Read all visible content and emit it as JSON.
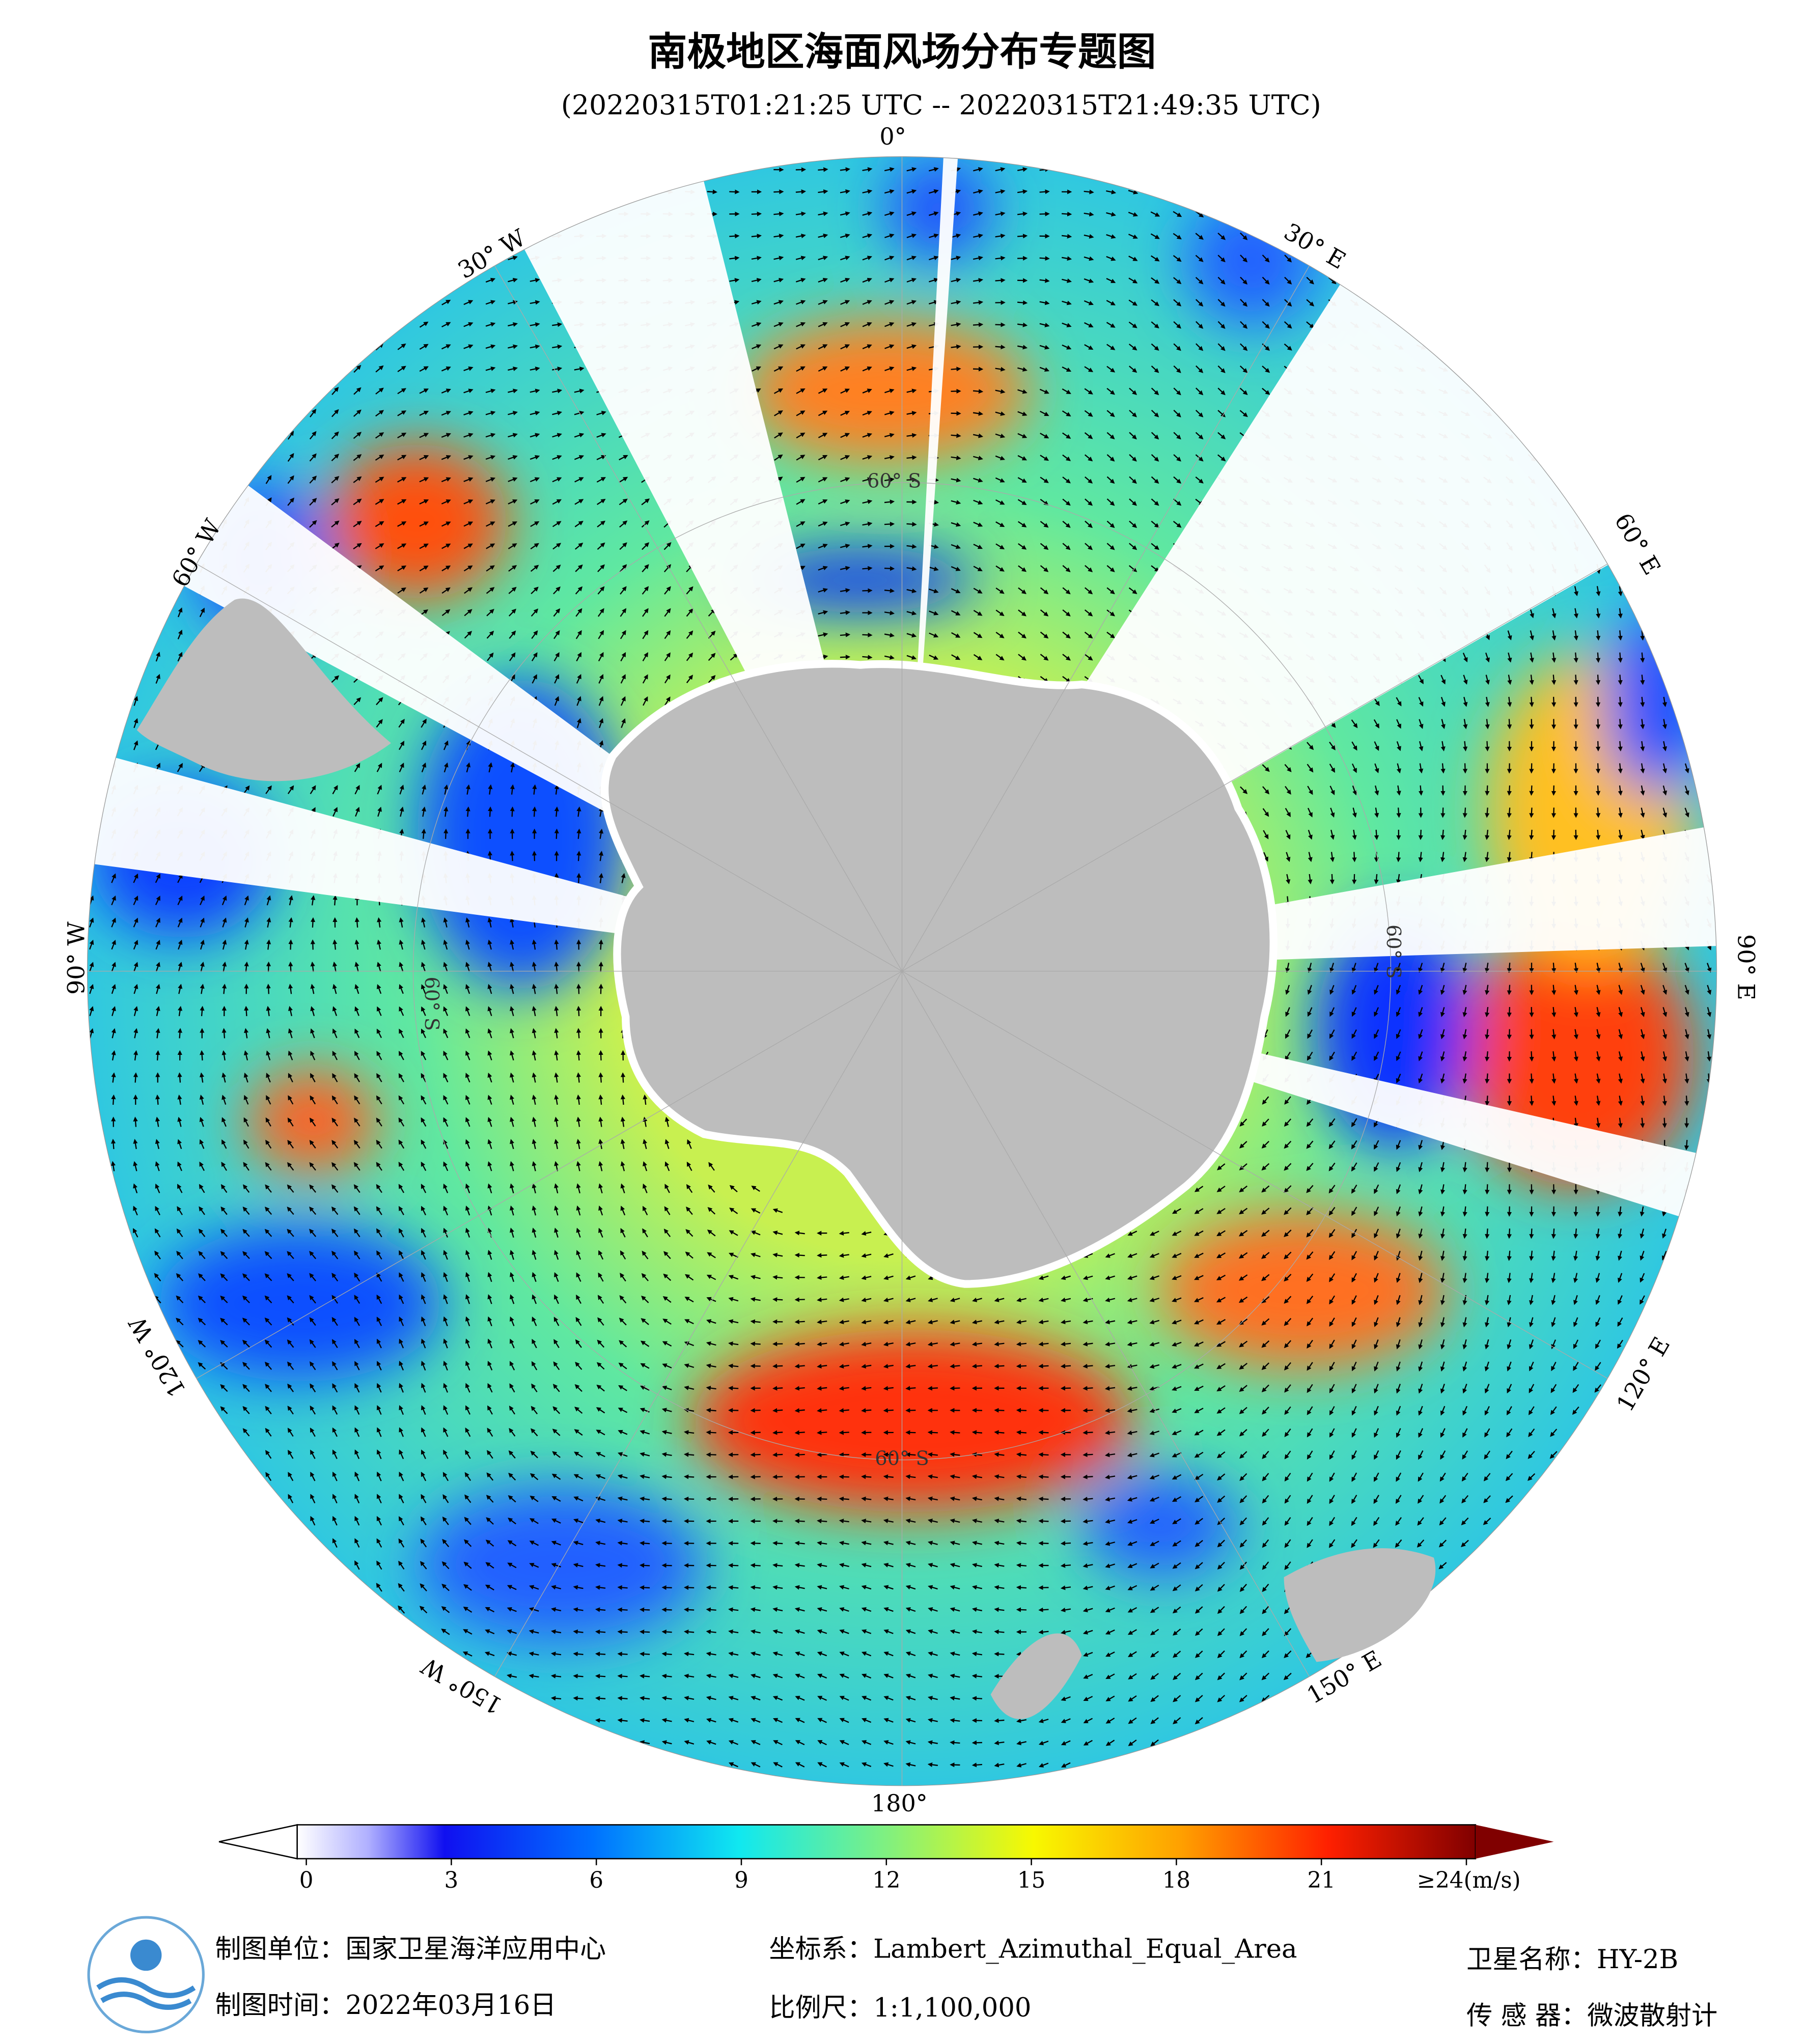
{
  "title": "南极地区海面风场分布专题图",
  "subtitle": "(20220315T01:21:25 UTC -- 20220315T21:49:35 UTC)",
  "map": {
    "longitude_labels": [
      "0°",
      "30° E",
      "60° E",
      "90° E",
      "120° E",
      "150° E",
      "180°",
      "150° W",
      "120° W",
      "90° W",
      "60° W",
      "30° W"
    ],
    "latitude_labels": [
      "60° S",
      "60° S",
      "60° S",
      "60° S"
    ]
  },
  "colorbar": {
    "range": [
      0,
      24
    ],
    "ticks": [
      0,
      3,
      6,
      9,
      12,
      15,
      18,
      21,
      {
        "value": 24,
        "label": "≥24(m/s)"
      }
    ]
  },
  "footer": {
    "producer": "制图单位：国家卫星海洋应用中心",
    "date": "制图时间：2022年03月16日",
    "projection": "坐标系：Lambert_Azimuthal_Equal_Area",
    "scale": "比例尺：1:1,100,000",
    "satellite": "卫星名称：HY-2B",
    "sensor": "传 感 器：微波散射计"
  }
}
